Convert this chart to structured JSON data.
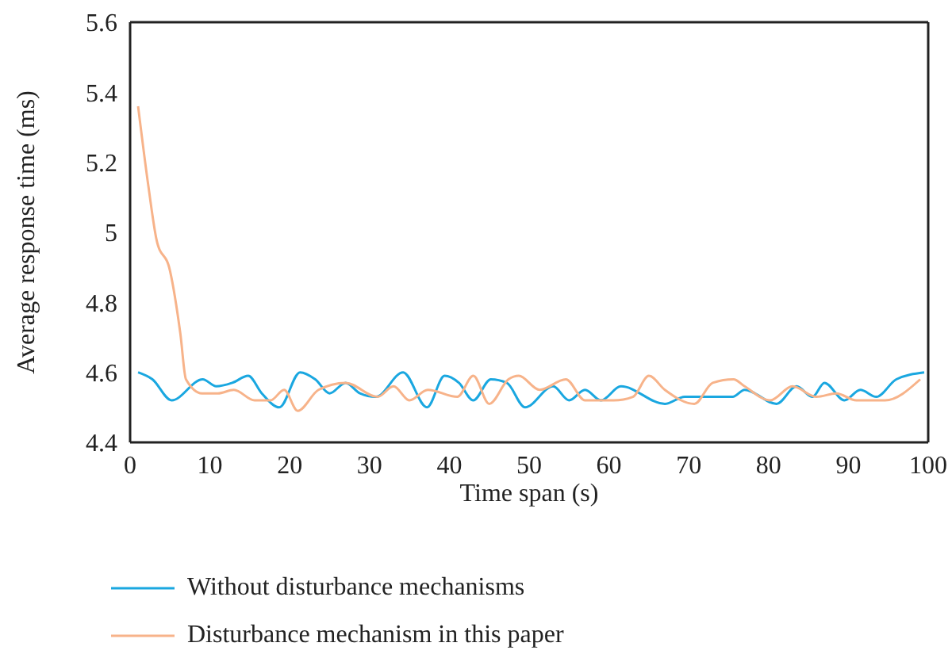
{
  "chart_data": {
    "type": "line",
    "xlabel": "Time span (s)",
    "ylabel": "Average response time (ms)",
    "xlim": [
      0,
      100
    ],
    "xticks": [
      0,
      10,
      20,
      30,
      40,
      50,
      60,
      70,
      80,
      90,
      100
    ],
    "ylim": [
      4.4,
      5.6
    ],
    "yticks": [
      4.4,
      4.6,
      4.8,
      5,
      5.2,
      5.4,
      5.6
    ],
    "legend": "bottom",
    "marker": "none",
    "line_style": "solid",
    "series": [
      {
        "name": "Without disturbance mechanisms",
        "color": "#1aa7e0",
        "x": [
          1,
          2.8,
          5.2,
          9.1,
          10.8,
          12.8,
          14.8,
          16.5,
          18.7,
          21.3,
          23.2,
          25,
          27,
          28.8,
          30.8,
          34.2,
          37.2,
          39.4,
          41.2,
          43,
          45.2,
          47.2,
          49.5,
          53,
          55,
          57,
          59,
          61.5,
          67,
          69.5,
          75.5,
          77,
          81,
          83.5,
          85.5,
          87,
          89.5,
          91.5,
          93.5,
          96,
          99.5
        ],
        "values": [
          4.6,
          4.58,
          4.52,
          4.58,
          4.56,
          4.57,
          4.59,
          4.54,
          4.5,
          4.6,
          4.58,
          4.54,
          4.57,
          4.54,
          4.53,
          4.6,
          4.5,
          4.59,
          4.57,
          4.52,
          4.58,
          4.57,
          4.5,
          4.56,
          4.52,
          4.55,
          4.52,
          4.56,
          4.51,
          4.53,
          4.53,
          4.55,
          4.51,
          4.56,
          4.53,
          4.57,
          4.52,
          4.55,
          4.53,
          4.58,
          4.6
        ]
      },
      {
        "name": "Disturbance mechanism in this paper",
        "color": "#f7b38a",
        "x": [
          1,
          2.3,
          3.3,
          5,
          6.3,
          7,
          9,
          11,
          13,
          15.6,
          17.6,
          19.3,
          21,
          23.6,
          27,
          31,
          33,
          35,
          37.3,
          41,
          43,
          45,
          47.4,
          48.7,
          51.3,
          54.6,
          57,
          60.6,
          63,
          65,
          67,
          70.7,
          73,
          75.6,
          77,
          80.2,
          83,
          86,
          88.5,
          91,
          94.6,
          99
        ],
        "values": [
          5.36,
          5.13,
          4.98,
          4.89,
          4.71,
          4.58,
          4.54,
          4.54,
          4.55,
          4.52,
          4.52,
          4.55,
          4.49,
          4.55,
          4.57,
          4.53,
          4.56,
          4.52,
          4.55,
          4.53,
          4.59,
          4.51,
          4.58,
          4.59,
          4.55,
          4.58,
          4.52,
          4.52,
          4.53,
          4.59,
          4.55,
          4.51,
          4.57,
          4.58,
          4.56,
          4.52,
          4.56,
          4.53,
          4.54,
          4.52,
          4.52,
          4.58
        ]
      }
    ]
  }
}
